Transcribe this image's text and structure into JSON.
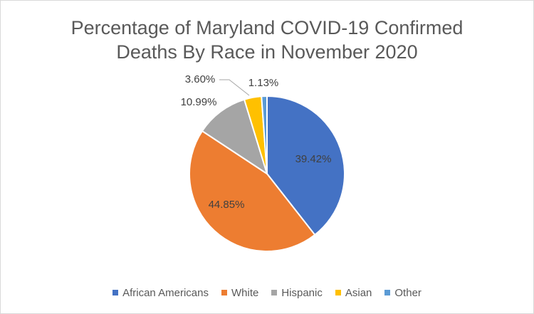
{
  "chart_data": {
    "type": "pie",
    "title_line1": "Percentage of Maryland COVID-19 Confirmed",
    "title_line2": "Deaths By Race in November 2020",
    "slices": [
      {
        "name": "African Americans",
        "value": 39.42,
        "label": "39.42%",
        "color": "#4472C4"
      },
      {
        "name": "White",
        "value": 44.85,
        "label": "44.85%",
        "color": "#ED7D31"
      },
      {
        "name": "Hispanic",
        "value": 10.99,
        "label": "10.99%",
        "color": "#A5A5A5"
      },
      {
        "name": "Asian",
        "value": 3.6,
        "label": "3.60%",
        "color": "#FFC000"
      },
      {
        "name": "Other",
        "value": 1.13,
        "label": "1.13%",
        "color": "#5B9BD5"
      }
    ],
    "legend_position": "bottom"
  }
}
